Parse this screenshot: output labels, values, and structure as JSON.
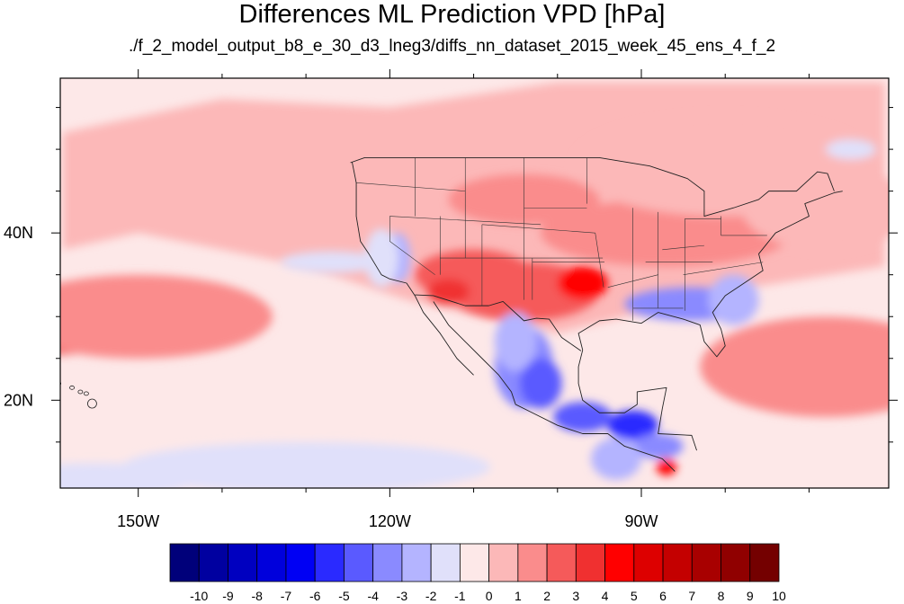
{
  "title": "Differences ML Prediction VPD [hPa]",
  "subtitle": "./f_2_model_output_b8_e_30_d3_lneg3/diffs_nn_dataset_2015_week_45_ens_4_f_2",
  "chart_data": {
    "type": "heatmap",
    "title": "Differences ML Prediction VPD [hPa]",
    "subtitle": "./f_2_model_output_b8_e_30_d3_lneg3/diffs_nn_dataset_2015_week_45_ens_4_f_2",
    "x_axis": {
      "ticks": [
        -150,
        -120,
        -90
      ],
      "tick_labels": [
        "150W",
        "120W",
        "90W"
      ],
      "range": [
        -159.3,
        -60.5
      ]
    },
    "y_axis": {
      "ticks": [
        20,
        40
      ],
      "tick_labels": [
        "20N",
        "40N"
      ],
      "range": [
        9.5,
        58.5
      ]
    },
    "colorbar": {
      "levels": [
        -10,
        -9,
        -8,
        -7,
        -6,
        -5,
        -4,
        -3,
        -2,
        -1,
        0,
        1,
        2,
        3,
        4,
        5,
        6,
        7,
        8,
        9,
        10
      ],
      "labels": [
        "-10",
        "-9",
        "-8",
        "-7",
        "-6",
        "-5",
        "-4",
        "-3",
        "-2",
        "-1",
        "0",
        "1",
        "2",
        "3",
        "4",
        "5",
        "6",
        "7",
        "8",
        "9",
        "10"
      ],
      "colors": [
        "#00007a",
        "#0000a0",
        "#0000c0",
        "#0000dc",
        "#0000f4",
        "#2a2aff",
        "#5a5aff",
        "#8a8aff",
        "#b4b4ff",
        "#e0e0fa",
        "#fde8e8",
        "#fcb8b8",
        "#fa8c8c",
        "#f55a5a",
        "#f03030",
        "#ff0000",
        "#dd0000",
        "#c40000",
        "#a80000",
        "#900000",
        "#740000"
      ]
    },
    "anomaly_regions": [
      {
        "lon": -159,
        "lat": 29,
        "rlon": 10,
        "rlat": 3.5,
        "value": 3.5
      },
      {
        "lon": -150,
        "lat": 30,
        "rlon": 16,
        "rlat": 5,
        "value": 1.5
      },
      {
        "lon": -104,
        "lat": 33,
        "rlon": 9,
        "rlat": 3.5,
        "value": 2.8
      },
      {
        "lon": -97,
        "lat": 34,
        "rlon": 3,
        "rlat": 2,
        "value": 4.2
      },
      {
        "lon": -110,
        "lat": 35,
        "rlon": 7,
        "rlat": 3,
        "value": 2.5
      },
      {
        "lon": -113,
        "lat": 33,
        "rlon": 2.5,
        "rlat": 1.5,
        "value": 3.5
      },
      {
        "lon": -104,
        "lat": 44,
        "rlon": 9,
        "rlat": 3,
        "value": 1.8
      },
      {
        "lon": -87,
        "lat": 40,
        "rlon": 15,
        "rlat": 4,
        "value": 1.8
      },
      {
        "lon": -78,
        "lat": 41,
        "rlon": 6,
        "rlat": 3,
        "value": 1.8
      },
      {
        "lon": -68,
        "lat": 24,
        "rlon": 15,
        "rlat": 6,
        "value": 1.2
      },
      {
        "lon": -80,
        "lat": 48,
        "rlon": 18,
        "rlat": 6,
        "value": 1.0
      },
      {
        "lon": -68,
        "lat": 43,
        "rlon": 10,
        "rlat": 5,
        "value": 1.0
      },
      {
        "lon": -87,
        "lat": 12,
        "rlon": 1.2,
        "rlat": 1,
        "value": 5
      },
      {
        "lon": -119,
        "lat": 37,
        "rlon": 1.5,
        "rlat": 3,
        "value": -2.8
      },
      {
        "lon": -121,
        "lat": 37,
        "rlon": 2,
        "rlat": 3.5,
        "value": -1.3
      },
      {
        "lon": -84,
        "lat": 31.5,
        "rlon": 8,
        "rlat": 2,
        "value": -3.2
      },
      {
        "lon": -79,
        "lat": 32,
        "rlon": 3,
        "rlat": 3,
        "value": -2.5
      },
      {
        "lon": -104,
        "lat": 24,
        "rlon": 3.5,
        "rlat": 5,
        "value": -3.8
      },
      {
        "lon": -102,
        "lat": 22,
        "rlon": 2.5,
        "rlat": 3,
        "value": -4.5
      },
      {
        "lon": -97,
        "lat": 18,
        "rlon": 3.5,
        "rlat": 1.8,
        "value": -4.0
      },
      {
        "lon": -91,
        "lat": 17,
        "rlon": 3,
        "rlat": 1.8,
        "value": -5.0
      },
      {
        "lon": -88,
        "lat": 14.5,
        "rlon": 3,
        "rlat": 1.5,
        "value": -3.5
      },
      {
        "lon": -105,
        "lat": 27,
        "rlon": 2.5,
        "rlat": 3.5,
        "value": -2.5
      },
      {
        "lon": -130,
        "lat": 12,
        "rlon": 22,
        "rlat": 3,
        "value": -1.8
      },
      {
        "lon": -155,
        "lat": 10.5,
        "rlon": 12,
        "rlat": 2,
        "value": -1.5
      },
      {
        "lon": -127,
        "lat": 36.5,
        "rlon": 6,
        "rlat": 1.3,
        "value": -1.6
      },
      {
        "lon": -93,
        "lat": 13,
        "rlon": 3,
        "rlat": 2.5,
        "value": -2.0
      },
      {
        "lon": -65,
        "lat": 50,
        "rlon": 3,
        "rlat": 1.2,
        "value": -1.5
      }
    ]
  }
}
